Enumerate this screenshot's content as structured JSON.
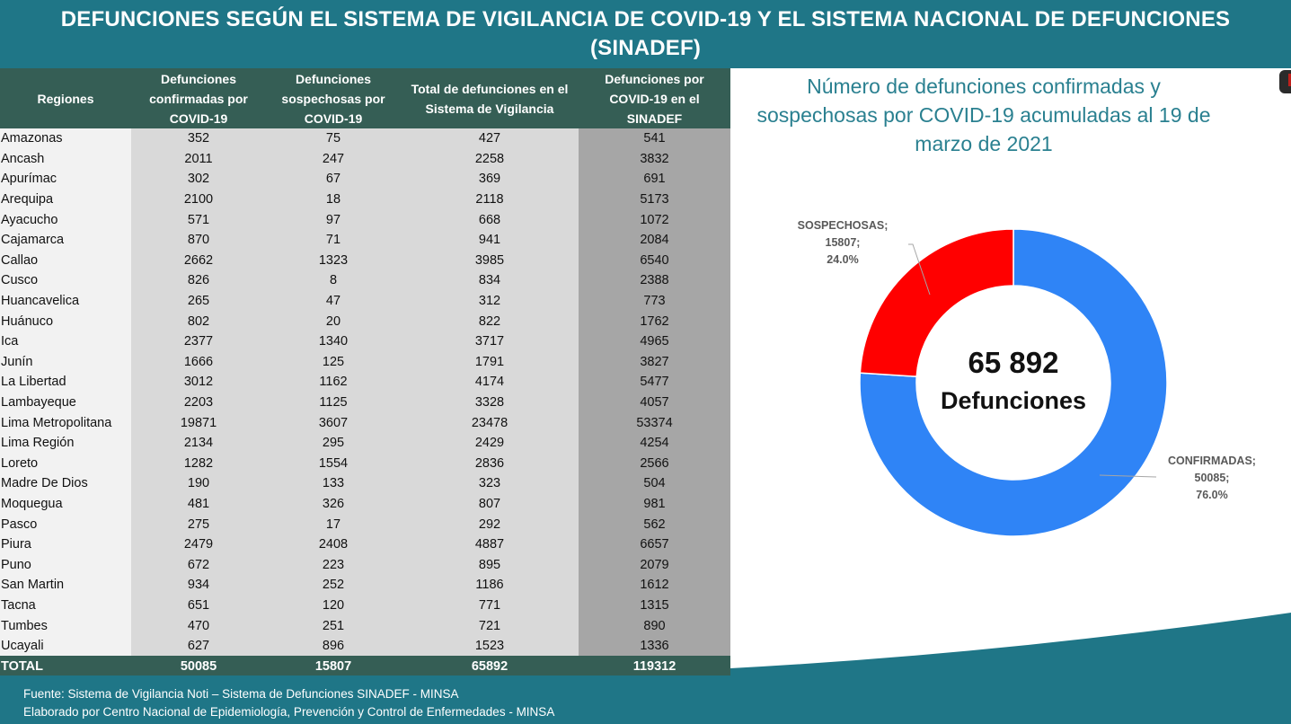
{
  "header": {
    "title_line1": "DEFUNCIONES SEGÚN EL SISTEMA DE VIGILANCIA DE COVID-19 Y EL SISTEMA NACIONAL DE DEFUNCIONES",
    "title_line2": "(SINADEF)"
  },
  "table": {
    "columns": [
      "Regiones",
      "Defunciones confirmadas por COVID-19",
      "Defunciones sospechosas por COVID-19",
      "Total de defunciones en el Sistema de Vigilancia",
      "Defunciones por COVID-19 en el SINADEF"
    ],
    "rows": [
      {
        "region": "Amazonas",
        "confirmadas": "352",
        "sospechosas": "75",
        "total_vigilancia": "427",
        "sinadef": "541"
      },
      {
        "region": "Ancash",
        "confirmadas": "2011",
        "sospechosas": "247",
        "total_vigilancia": "2258",
        "sinadef": "3832"
      },
      {
        "region": "Apurímac",
        "confirmadas": "302",
        "sospechosas": "67",
        "total_vigilancia": "369",
        "sinadef": "691"
      },
      {
        "region": "Arequipa",
        "confirmadas": "2100",
        "sospechosas": "18",
        "total_vigilancia": "2118",
        "sinadef": "5173"
      },
      {
        "region": "Ayacucho",
        "confirmadas": "571",
        "sospechosas": "97",
        "total_vigilancia": "668",
        "sinadef": "1072"
      },
      {
        "region": "Cajamarca",
        "confirmadas": "870",
        "sospechosas": "71",
        "total_vigilancia": "941",
        "sinadef": "2084"
      },
      {
        "region": "Callao",
        "confirmadas": "2662",
        "sospechosas": "1323",
        "total_vigilancia": "3985",
        "sinadef": "6540"
      },
      {
        "region": "Cusco",
        "confirmadas": "826",
        "sospechosas": "8",
        "total_vigilancia": "834",
        "sinadef": "2388"
      },
      {
        "region": "Huancavelica",
        "confirmadas": "265",
        "sospechosas": "47",
        "total_vigilancia": "312",
        "sinadef": "773"
      },
      {
        "region": "Huánuco",
        "confirmadas": "802",
        "sospechosas": "20",
        "total_vigilancia": "822",
        "sinadef": "1762"
      },
      {
        "region": "Ica",
        "confirmadas": "2377",
        "sospechosas": "1340",
        "total_vigilancia": "3717",
        "sinadef": "4965"
      },
      {
        "region": "Junín",
        "confirmadas": "1666",
        "sospechosas": "125",
        "total_vigilancia": "1791",
        "sinadef": "3827"
      },
      {
        "region": "La Libertad",
        "confirmadas": "3012",
        "sospechosas": "1162",
        "total_vigilancia": "4174",
        "sinadef": "5477"
      },
      {
        "region": "Lambayeque",
        "confirmadas": "2203",
        "sospechosas": "1125",
        "total_vigilancia": "3328",
        "sinadef": "4057"
      },
      {
        "region": "Lima Metropolitana",
        "confirmadas": "19871",
        "sospechosas": "3607",
        "total_vigilancia": "23478",
        "sinadef": "53374"
      },
      {
        "region": "Lima Región",
        "confirmadas": "2134",
        "sospechosas": "295",
        "total_vigilancia": "2429",
        "sinadef": "4254"
      },
      {
        "region": "Loreto",
        "confirmadas": "1282",
        "sospechosas": "1554",
        "total_vigilancia": "2836",
        "sinadef": "2566"
      },
      {
        "region": "Madre De Dios",
        "confirmadas": "190",
        "sospechosas": "133",
        "total_vigilancia": "323",
        "sinadef": "504"
      },
      {
        "region": "Moquegua",
        "confirmadas": "481",
        "sospechosas": "326",
        "total_vigilancia": "807",
        "sinadef": "981"
      },
      {
        "region": "Pasco",
        "confirmadas": "275",
        "sospechosas": "17",
        "total_vigilancia": "292",
        "sinadef": "562"
      },
      {
        "region": "Piura",
        "confirmadas": "2479",
        "sospechosas": "2408",
        "total_vigilancia": "4887",
        "sinadef": "6657"
      },
      {
        "region": "Puno",
        "confirmadas": "672",
        "sospechosas": "223",
        "total_vigilancia": "895",
        "sinadef": "2079"
      },
      {
        "region": "San Martin",
        "confirmadas": "934",
        "sospechosas": "252",
        "total_vigilancia": "1186",
        "sinadef": "1612"
      },
      {
        "region": "Tacna",
        "confirmadas": "651",
        "sospechosas": "120",
        "total_vigilancia": "771",
        "sinadef": "1315"
      },
      {
        "region": "Tumbes",
        "confirmadas": "470",
        "sospechosas": "251",
        "total_vigilancia": "721",
        "sinadef": "890"
      },
      {
        "region": "Ucayali",
        "confirmadas": "627",
        "sospechosas": "896",
        "total_vigilancia": "1523",
        "sinadef": "1336"
      }
    ],
    "total": {
      "region": "TOTAL",
      "confirmadas": "50085",
      "sospechosas": "15807",
      "total_vigilancia": "65892",
      "sinadef": "119312"
    }
  },
  "chart": {
    "title": "Número de defunciones confirmadas y sospechosas por COVID-19 acumuladas al 19 de marzo de 2021",
    "center_number": "65 892",
    "center_label": "Defunciones",
    "label_susp": [
      "SOSPECHOSAS;",
      "15807;",
      "24.0%"
    ],
    "label_conf": [
      "CONFIRMADAS;",
      "50085;",
      "76.0%"
    ]
  },
  "footer": {
    "source": "Fuente: Sistema de Vigilancia Noti – Sistema de Defunciones SINADEF - MINSA",
    "prepared_by": "Elaborado por Centro Nacional de Epidemiología, Prevención y Control de Enfermedades - MINSA"
  },
  "colors": {
    "banner": "#1f7687",
    "table_header": "#355e55",
    "confirmadas": "#2f84f6",
    "sospechosas": "#ff0000",
    "chart_title": "#2a8090"
  },
  "chart_data": [
    {
      "type": "pie",
      "title": "Número de defunciones confirmadas y sospechosas por COVID-19 acumuladas al 19 de marzo de 2021",
      "subtype": "donut",
      "categories": [
        "CONFIRMADAS",
        "SOSPECHOSAS"
      ],
      "values": [
        50085,
        15807
      ],
      "percentages": [
        76.0,
        24.0
      ],
      "colors": [
        "#2f84f6",
        "#ff0000"
      ],
      "center_text": "65 892 Defunciones",
      "total": 65892
    },
    {
      "type": "table",
      "title": "DEFUNCIONES SEGÚN EL SISTEMA DE VIGILANCIA DE COVID-19 Y EL SISTEMA NACIONAL DE DEFUNCIONES (SINADEF)",
      "columns": [
        "Regiones",
        "Defunciones confirmadas por COVID-19",
        "Defunciones sospechosas por COVID-19",
        "Total de defunciones en el Sistema de Vigilancia",
        "Defunciones por COVID-19 en el SINADEF"
      ],
      "categories": [
        "Amazonas",
        "Ancash",
        "Apurímac",
        "Arequipa",
        "Ayacucho",
        "Cajamarca",
        "Callao",
        "Cusco",
        "Huancavelica",
        "Huánuco",
        "Ica",
        "Junín",
        "La Libertad",
        "Lambayeque",
        "Lima Metropolitana",
        "Lima Región",
        "Loreto",
        "Madre De Dios",
        "Moquegua",
        "Pasco",
        "Piura",
        "Puno",
        "San Martin",
        "Tacna",
        "Tumbes",
        "Ucayali"
      ],
      "series": [
        {
          "name": "Defunciones confirmadas por COVID-19",
          "values": [
            352,
            2011,
            302,
            2100,
            571,
            870,
            2662,
            826,
            265,
            802,
            2377,
            1666,
            3012,
            2203,
            19871,
            2134,
            1282,
            190,
            481,
            275,
            2479,
            672,
            934,
            651,
            470,
            627
          ],
          "total": 50085
        },
        {
          "name": "Defunciones sospechosas por COVID-19",
          "values": [
            75,
            247,
            67,
            18,
            97,
            71,
            1323,
            8,
            47,
            20,
            1340,
            125,
            1162,
            1125,
            3607,
            295,
            1554,
            133,
            326,
            17,
            2408,
            223,
            252,
            120,
            251,
            896
          ],
          "total": 15807
        },
        {
          "name": "Total de defunciones en el Sistema de Vigilancia",
          "values": [
            427,
            2258,
            369,
            2118,
            668,
            941,
            3985,
            834,
            312,
            822,
            3717,
            1791,
            4174,
            3328,
            23478,
            2429,
            2836,
            323,
            807,
            292,
            4887,
            895,
            1186,
            771,
            721,
            1523
          ],
          "total": 65892
        },
        {
          "name": "Defunciones por COVID-19 en el SINADEF",
          "values": [
            541,
            3832,
            691,
            5173,
            1072,
            2084,
            6540,
            2388,
            773,
            1762,
            4965,
            3827,
            5477,
            4057,
            53374,
            4254,
            2566,
            504,
            981,
            562,
            6657,
            2079,
            1612,
            1315,
            890,
            1336
          ],
          "total": 119312
        }
      ]
    }
  ]
}
